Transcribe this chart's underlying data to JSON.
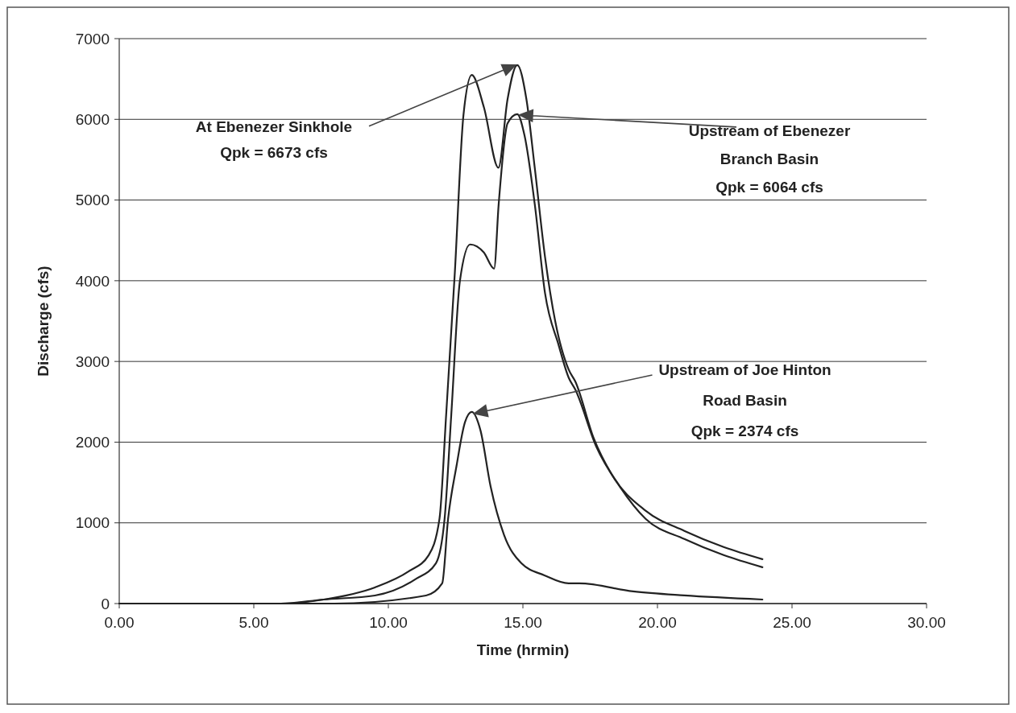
{
  "chart_data": {
    "type": "line",
    "xlabel": "Time (hrmin)",
    "ylabel": "Discharge (cfs)",
    "xlim": [
      0,
      30
    ],
    "ylim": [
      0,
      7000
    ],
    "xticks": [
      {
        "value": 0,
        "label": "0.00"
      },
      {
        "value": 5,
        "label": "5.00"
      },
      {
        "value": 10,
        "label": "10.00"
      },
      {
        "value": 15,
        "label": "15.00"
      },
      {
        "value": 20,
        "label": "20.00"
      },
      {
        "value": 25,
        "label": "25.00"
      },
      {
        "value": 30,
        "label": "30.00"
      }
    ],
    "yticks": [
      0,
      1000,
      2000,
      3000,
      4000,
      5000,
      6000,
      7000
    ],
    "grid": "y",
    "marker": "none",
    "line_style": "solid",
    "series": [
      {
        "color": "#222222",
        "x": [
          0,
          6,
          7.6,
          9.5,
          10.76,
          11.5,
          11.9,
          12.15,
          12.47,
          12.79,
          13.1,
          13.55,
          14.09,
          14.43,
          14.79,
          15.13,
          15.44,
          15.82,
          16.2,
          16.7,
          16.95,
          17.63,
          18.3,
          19.56,
          21,
          22.46,
          23.9
        ],
        "values": [
          0,
          0,
          50,
          200,
          400,
          600,
          1050,
          2350,
          4100,
          6050,
          6550,
          6150,
          5400,
          6250,
          6673,
          6250,
          5400,
          4300,
          3500,
          2900,
          2750,
          2050,
          1600,
          1150,
          900,
          700,
          550
        ]
      },
      {
        "color": "#222222",
        "x": [
          0,
          6,
          7.6,
          9.5,
          11,
          11.77,
          12.09,
          12.34,
          12.66,
          13.04,
          13.55,
          13.93,
          14.1,
          14.43,
          14.79,
          15.06,
          15.44,
          15.82,
          16.33,
          16.7,
          16.95,
          17.72,
          18.6,
          19.56,
          21,
          22.46,
          23.9
        ],
        "values": [
          0,
          0,
          50,
          100,
          300,
          500,
          1050,
          2350,
          4000,
          4450,
          4350,
          4150,
          4950,
          5950,
          6064,
          5800,
          4950,
          3850,
          3200,
          2800,
          2650,
          1950,
          1450,
          1050,
          800,
          600,
          450
        ]
      },
      {
        "color": "#222222",
        "x": [
          0,
          8,
          11.4,
          12,
          12.22,
          12.53,
          12.85,
          13.1,
          13.42,
          13.8,
          14.3,
          14.94,
          15.8,
          16.7,
          17.1,
          19.1,
          21,
          23.9
        ],
        "values": [
          0,
          0,
          100,
          250,
          1050,
          1700,
          2250,
          2374,
          2150,
          1450,
          850,
          500,
          350,
          250,
          250,
          150,
          100,
          50
        ]
      }
    ],
    "annotations": [
      "At Ebenezer Sinkhole\nQpk = 6673 cfs",
      "Upstream of Ebenezer\nBranch Basin\nQpk = 6064 cfs",
      "Upstream of Joe Hinton\nRoad Basin\nQpk = 2374 cfs"
    ]
  }
}
